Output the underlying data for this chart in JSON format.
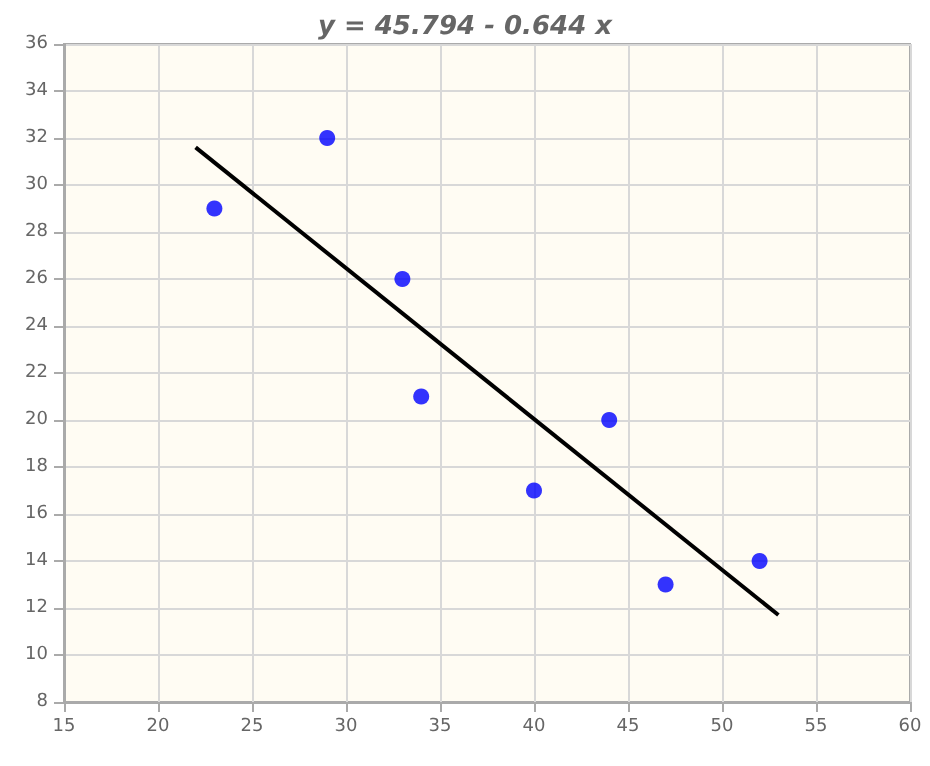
{
  "chart_data": {
    "type": "scatter",
    "title": "y = 45.794 - 0.644 x",
    "series": [
      {
        "color": "#0000ff",
        "marker": "circle",
        "x": [
          23,
          29,
          33,
          34,
          40,
          44,
          47,
          52
        ],
        "values": [
          29,
          32,
          26,
          21,
          17,
          20,
          13,
          14
        ]
      },
      {
        "type": "line",
        "color": "#000000",
        "x": [
          22,
          53
        ],
        "values": [
          31.6,
          11.7
        ]
      }
    ],
    "xlim": [
      15,
      60
    ],
    "xticks": [
      15,
      20,
      25,
      30,
      35,
      40,
      45,
      50,
      55,
      60
    ],
    "ylim": [
      8,
      36
    ],
    "yticks": [
      8,
      10,
      12,
      14,
      16,
      18,
      20,
      22,
      24,
      26,
      28,
      30,
      32,
      34,
      36
    ],
    "grid": true
  }
}
